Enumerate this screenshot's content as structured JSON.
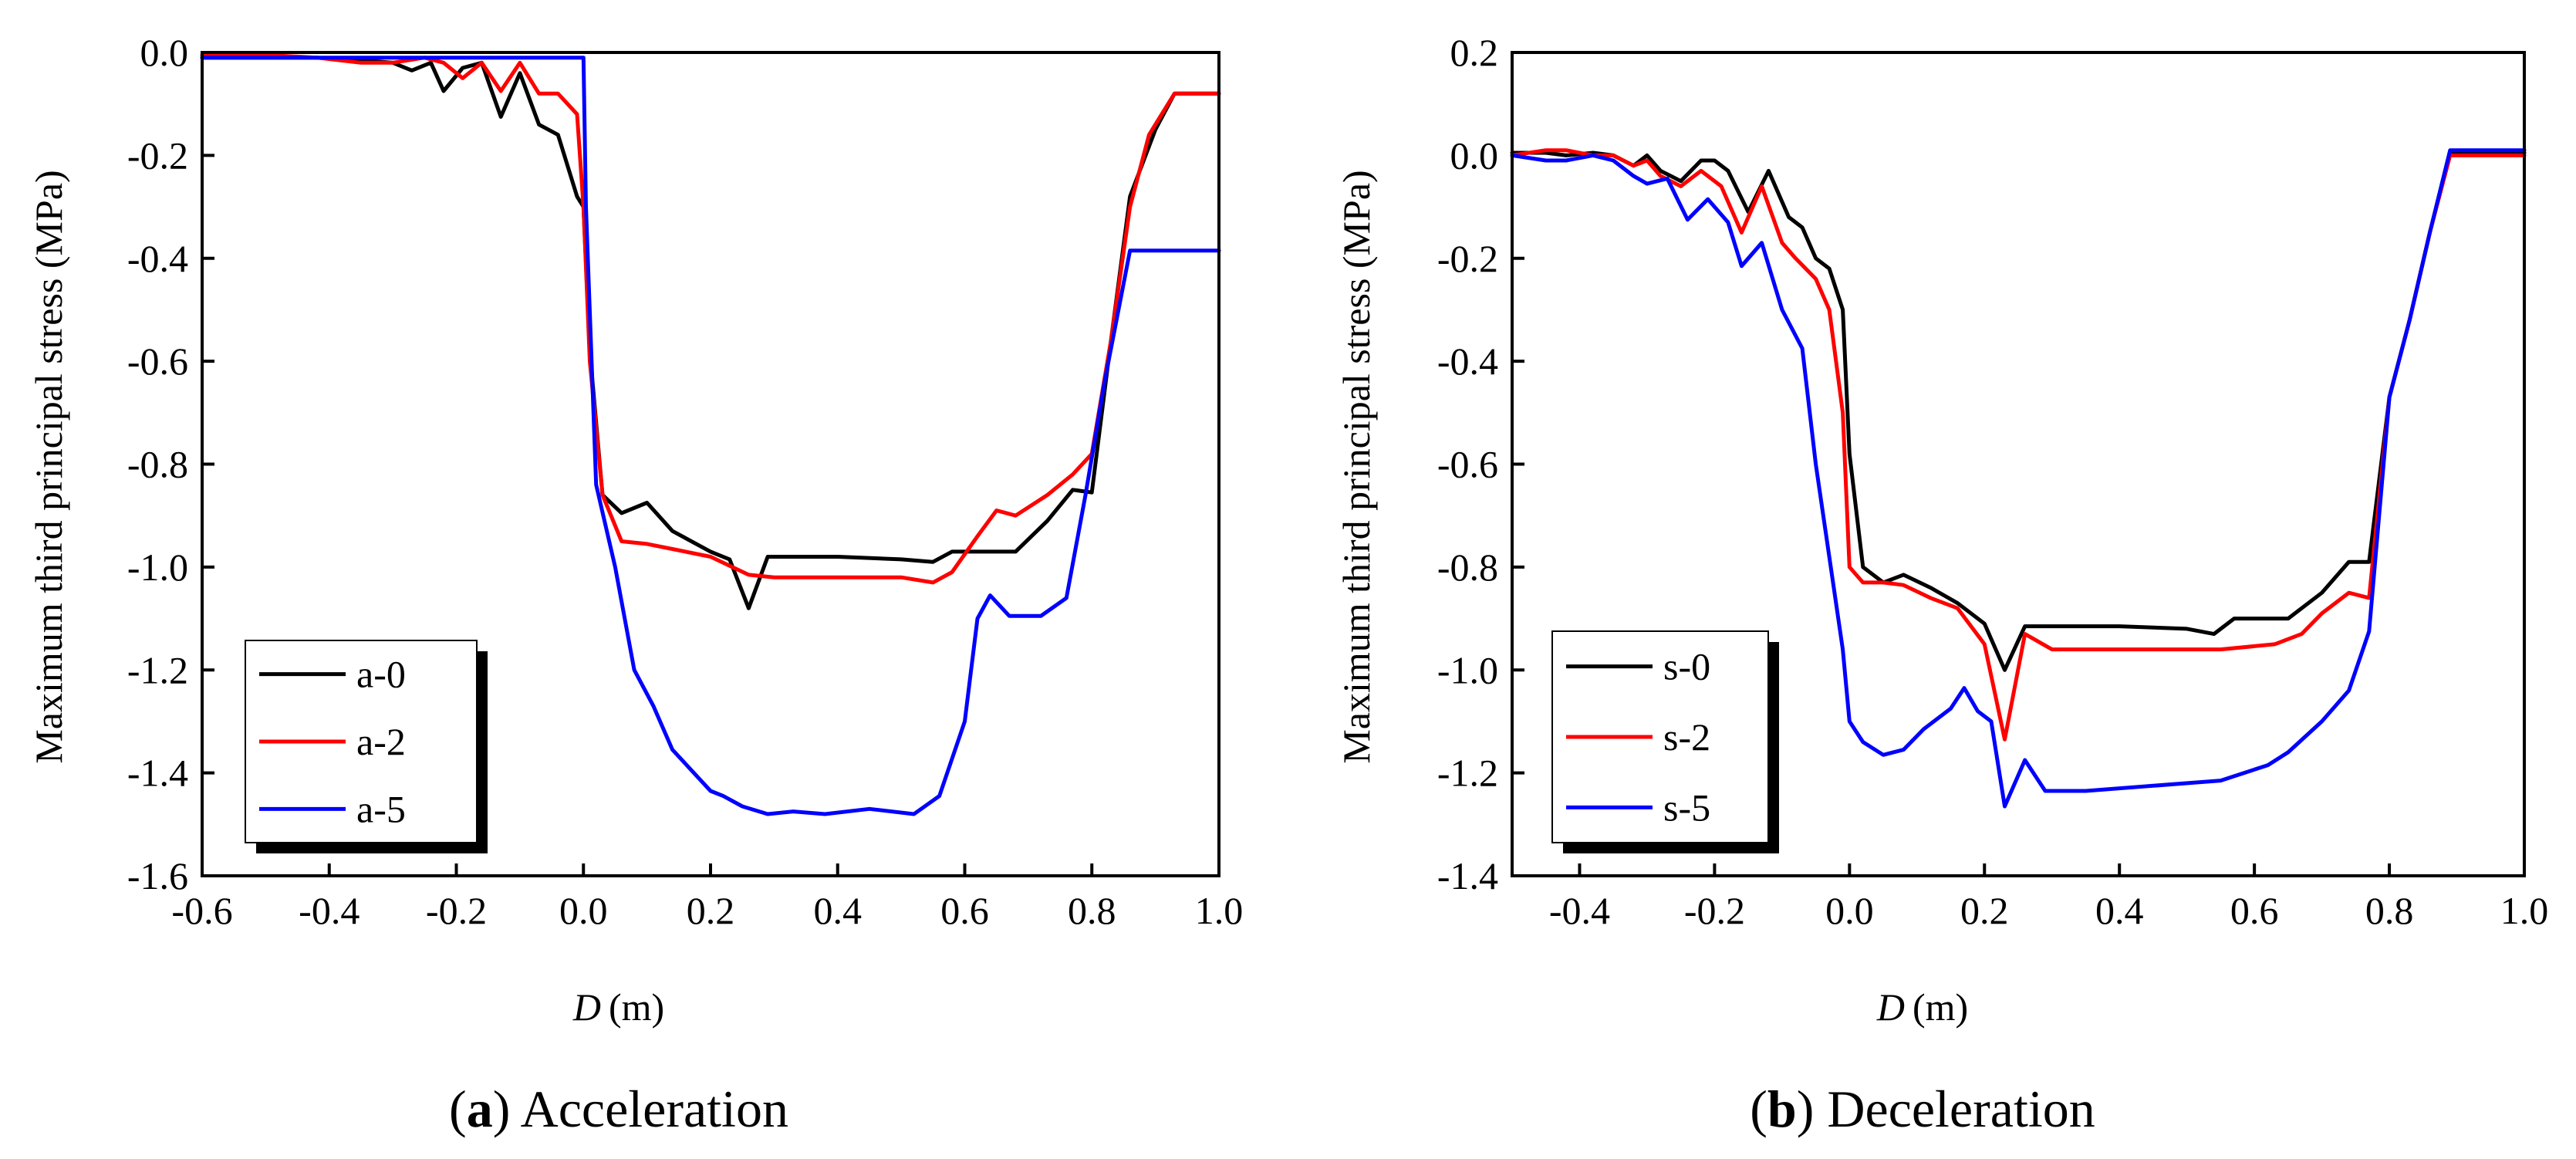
{
  "chart_data": [
    {
      "type": "line",
      "panel_letter": "a",
      "caption": "Acceleration",
      "xlabel_symbol": "D",
      "xlabel_unit": "(m)",
      "ylabel": "Maximum third principal stress (MPa)",
      "xlim": [
        -0.6,
        1.0
      ],
      "ylim": [
        -1.6,
        0.0
      ],
      "xticks": [
        -0.6,
        -0.4,
        -0.2,
        0.0,
        0.2,
        0.4,
        0.6,
        0.8,
        1.0
      ],
      "xtick_labels": [
        "-0.6",
        "-0.4",
        "-0.2",
        "0.0",
        "0.2",
        "0.4",
        "0.6",
        "0.8",
        "1.0"
      ],
      "yticks": [
        0.0,
        -0.2,
        -0.4,
        -0.6,
        -0.8,
        -1.0,
        -1.2,
        -1.4,
        -1.6
      ],
      "ytick_labels": [
        "0.0",
        "-0.2",
        "-0.4",
        "-0.6",
        "-0.8",
        "-1.0",
        "-1.2",
        "-1.4",
        "-1.6"
      ],
      "legend_position": "bottom-left",
      "series": [
        {
          "name": "a-0",
          "color": "#000000",
          "x": [
            -0.6,
            -0.5,
            -0.42,
            -0.35,
            -0.3,
            -0.27,
            -0.24,
            -0.22,
            -0.19,
            -0.16,
            -0.13,
            -0.1,
            -0.07,
            -0.04,
            -0.01,
            0.0,
            0.01,
            0.03,
            0.06,
            0.1,
            0.14,
            0.2,
            0.23,
            0.26,
            0.29,
            0.33,
            0.4,
            0.5,
            0.55,
            0.58,
            0.62,
            0.68,
            0.73,
            0.77,
            0.8,
            0.83,
            0.86,
            0.9,
            0.93,
            1.0
          ],
          "y": [
            -0.01,
            -0.01,
            -0.01,
            -0.015,
            -0.02,
            -0.035,
            -0.02,
            -0.075,
            -0.03,
            -0.02,
            -0.125,
            -0.04,
            -0.14,
            -0.16,
            -0.28,
            -0.3,
            -0.58,
            -0.86,
            -0.895,
            -0.875,
            -0.93,
            -0.97,
            -0.985,
            -1.08,
            -0.98,
            -0.98,
            -0.98,
            -0.985,
            -0.99,
            -0.97,
            -0.97,
            -0.97,
            -0.91,
            -0.85,
            -0.855,
            -0.56,
            -0.28,
            -0.15,
            -0.08,
            -0.08
          ]
        },
        {
          "name": "a-2",
          "color": "#ff0000",
          "x": [
            -0.6,
            -0.5,
            -0.42,
            -0.35,
            -0.3,
            -0.25,
            -0.22,
            -0.19,
            -0.16,
            -0.13,
            -0.1,
            -0.07,
            -0.04,
            -0.01,
            0.0,
            0.01,
            0.03,
            0.06,
            0.1,
            0.14,
            0.2,
            0.26,
            0.3,
            0.4,
            0.5,
            0.55,
            0.58,
            0.62,
            0.65,
            0.68,
            0.73,
            0.77,
            0.8,
            0.83,
            0.86,
            0.89,
            0.93,
            1.0
          ],
          "y": [
            -0.005,
            -0.005,
            -0.01,
            -0.02,
            -0.02,
            -0.01,
            -0.02,
            -0.05,
            -0.02,
            -0.075,
            -0.02,
            -0.08,
            -0.08,
            -0.12,
            -0.3,
            -0.6,
            -0.86,
            -0.95,
            -0.955,
            -0.965,
            -0.98,
            -1.015,
            -1.02,
            -1.02,
            -1.02,
            -1.03,
            -1.01,
            -0.94,
            -0.89,
            -0.9,
            -0.86,
            -0.82,
            -0.78,
            -0.56,
            -0.3,
            -0.16,
            -0.08,
            -0.08
          ]
        },
        {
          "name": "a-5",
          "color": "#0000ff",
          "x": [
            -0.6,
            -0.5,
            -0.4,
            -0.3,
            -0.2,
            -0.1,
            0.0,
            0.004,
            0.02,
            0.05,
            0.08,
            0.11,
            0.14,
            0.2,
            0.22,
            0.25,
            0.29,
            0.33,
            0.38,
            0.45,
            0.52,
            0.56,
            0.6,
            0.62,
            0.64,
            0.67,
            0.72,
            0.76,
            0.79,
            0.82,
            0.86,
            1.0
          ],
          "y": [
            -0.01,
            -0.01,
            -0.01,
            -0.01,
            -0.01,
            -0.01,
            -0.01,
            -0.3,
            -0.84,
            -1.0,
            -1.2,
            -1.27,
            -1.355,
            -1.435,
            -1.445,
            -1.465,
            -1.48,
            -1.475,
            -1.48,
            -1.47,
            -1.48,
            -1.445,
            -1.3,
            -1.1,
            -1.055,
            -1.095,
            -1.095,
            -1.06,
            -0.86,
            -0.64,
            -0.385,
            -0.385
          ]
        }
      ]
    },
    {
      "type": "line",
      "panel_letter": "b",
      "caption": "Deceleration",
      "xlabel_symbol": "D",
      "xlabel_unit": "(m)",
      "ylabel": "Maximum third principal stress (MPa)",
      "xlim": [
        -0.5,
        1.0
      ],
      "ylim": [
        -1.4,
        0.2
      ],
      "xticks": [
        -0.4,
        -0.2,
        0.0,
        0.2,
        0.4,
        0.6,
        0.8,
        1.0
      ],
      "xtick_labels": [
        "-0.4",
        "-0.2",
        "0.0",
        "0.2",
        "0.4",
        "0.6",
        "0.8",
        "1.0"
      ],
      "yticks": [
        0.2,
        0.0,
        -0.2,
        -0.4,
        -0.6,
        -0.8,
        -1.0,
        -1.2,
        -1.4
      ],
      "ytick_labels": [
        "0.2",
        "0.0",
        "-0.2",
        "-0.4",
        "-0.6",
        "-0.8",
        "-1.0",
        "-1.2",
        "-1.4"
      ],
      "legend_position": "bottom-left",
      "series": [
        {
          "name": "s-0",
          "color": "#000000",
          "x": [
            -0.5,
            -0.45,
            -0.42,
            -0.38,
            -0.35,
            -0.32,
            -0.3,
            -0.28,
            -0.25,
            -0.22,
            -0.2,
            -0.18,
            -0.15,
            -0.12,
            -0.09,
            -0.07,
            -0.05,
            -0.03,
            -0.01,
            0.0,
            0.02,
            0.05,
            0.08,
            0.12,
            0.16,
            0.2,
            0.23,
            0.26,
            0.3,
            0.4,
            0.5,
            0.54,
            0.57,
            0.6,
            0.65,
            0.7,
            0.74,
            0.77,
            0.8,
            0.83,
            0.86,
            0.89,
            1.0
          ],
          "y": [
            0.005,
            0.005,
            0.0,
            0.005,
            0.0,
            -0.02,
            0.0,
            -0.03,
            -0.05,
            -0.01,
            -0.01,
            -0.03,
            -0.11,
            -0.03,
            -0.12,
            -0.14,
            -0.2,
            -0.22,
            -0.3,
            -0.58,
            -0.8,
            -0.83,
            -0.815,
            -0.84,
            -0.87,
            -0.91,
            -1.0,
            -0.915,
            -0.915,
            -0.915,
            -0.92,
            -0.93,
            -0.9,
            -0.9,
            -0.9,
            -0.85,
            -0.79,
            -0.79,
            -0.47,
            -0.32,
            -0.15,
            0.005,
            0.005
          ]
        },
        {
          "name": "s-2",
          "color": "#ff0000",
          "x": [
            -0.5,
            -0.45,
            -0.42,
            -0.38,
            -0.35,
            -0.32,
            -0.3,
            -0.28,
            -0.25,
            -0.22,
            -0.19,
            -0.16,
            -0.13,
            -0.1,
            -0.08,
            -0.05,
            -0.03,
            -0.01,
            0.0,
            0.02,
            0.05,
            0.08,
            0.12,
            0.16,
            0.2,
            0.23,
            0.26,
            0.3,
            0.4,
            0.55,
            0.63,
            0.67,
            0.7,
            0.74,
            0.77,
            0.8,
            0.83,
            0.86,
            0.89,
            1.0
          ],
          "y": [
            0.0,
            0.01,
            0.01,
            0.0,
            0.0,
            -0.02,
            -0.01,
            -0.04,
            -0.06,
            -0.03,
            -0.06,
            -0.15,
            -0.06,
            -0.17,
            -0.2,
            -0.24,
            -0.3,
            -0.5,
            -0.8,
            -0.83,
            -0.83,
            -0.835,
            -0.86,
            -0.88,
            -0.95,
            -1.135,
            -0.93,
            -0.96,
            -0.96,
            -0.96,
            -0.95,
            -0.93,
            -0.89,
            -0.85,
            -0.86,
            -0.47,
            -0.32,
            -0.15,
            0.0,
            0.0
          ]
        },
        {
          "name": "s-5",
          "color": "#0000ff",
          "x": [
            -0.5,
            -0.45,
            -0.42,
            -0.38,
            -0.35,
            -0.32,
            -0.3,
            -0.27,
            -0.24,
            -0.21,
            -0.18,
            -0.16,
            -0.13,
            -0.1,
            -0.07,
            -0.05,
            -0.03,
            -0.01,
            0.0,
            0.02,
            0.05,
            0.08,
            0.11,
            0.15,
            0.17,
            0.19,
            0.21,
            0.23,
            0.26,
            0.29,
            0.35,
            0.45,
            0.55,
            0.62,
            0.65,
            0.7,
            0.74,
            0.77,
            0.8,
            0.83,
            0.86,
            0.89,
            1.0
          ],
          "y": [
            0.0,
            -0.01,
            -0.01,
            0.0,
            -0.01,
            -0.04,
            -0.055,
            -0.045,
            -0.125,
            -0.085,
            -0.13,
            -0.215,
            -0.17,
            -0.3,
            -0.375,
            -0.6,
            -0.78,
            -0.96,
            -1.1,
            -1.14,
            -1.165,
            -1.155,
            -1.115,
            -1.075,
            -1.035,
            -1.08,
            -1.1,
            -1.265,
            -1.175,
            -1.235,
            -1.235,
            -1.225,
            -1.215,
            -1.185,
            -1.16,
            -1.1,
            -1.04,
            -0.925,
            -0.47,
            -0.32,
            -0.15,
            0.01,
            0.01
          ]
        }
      ]
    }
  ]
}
